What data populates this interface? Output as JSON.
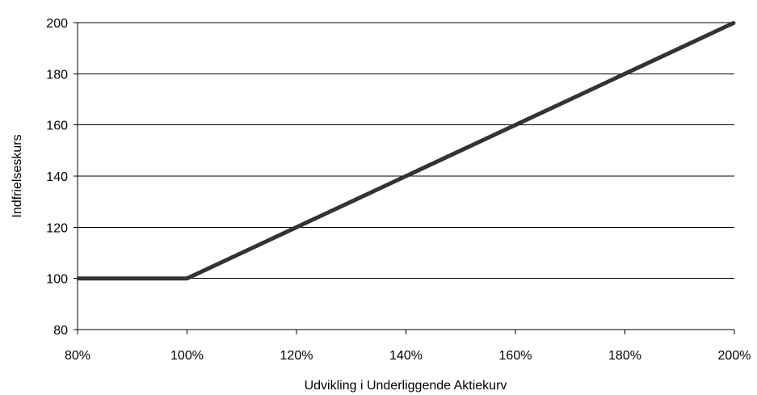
{
  "chart_data": {
    "type": "line",
    "title": "",
    "xlabel": "Udvikling i Underliggende Aktiekurv",
    "ylabel": "Indfrielseskurs",
    "xlim": [
      80,
      200
    ],
    "ylim": [
      80,
      200
    ],
    "x_ticks": [
      80,
      100,
      120,
      140,
      160,
      180,
      200
    ],
    "x_tick_labels": [
      "80%",
      "100%",
      "120%",
      "140%",
      "160%",
      "180%",
      "200%"
    ],
    "y_ticks": [
      80,
      100,
      120,
      140,
      160,
      180,
      200
    ],
    "y_tick_labels": [
      "80",
      "100",
      "120",
      "140",
      "160",
      "180",
      "200"
    ],
    "grid": "horizontal",
    "legend": "none",
    "series": [
      {
        "color": "#333333",
        "x": [
          80,
          90,
          100,
          110,
          120,
          130,
          140,
          150,
          160,
          170,
          180,
          190,
          200
        ],
        "y": [
          100,
          100,
          100,
          110,
          120,
          130,
          140,
          150,
          160,
          170,
          180,
          190,
          200
        ]
      }
    ]
  }
}
